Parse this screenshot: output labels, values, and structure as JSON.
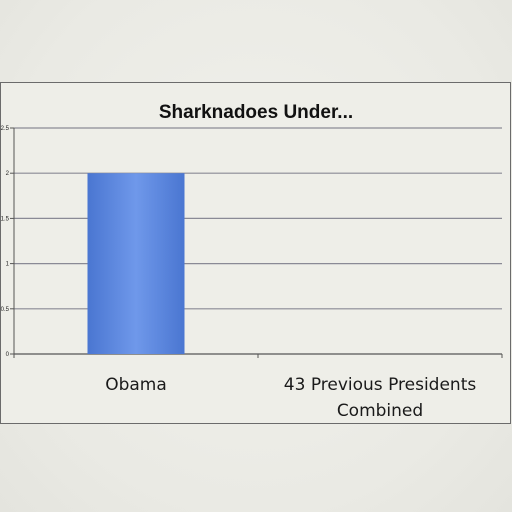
{
  "chart_data": {
    "type": "bar",
    "title": "Sharknadoes Under...",
    "categories": [
      "Obama",
      "43 Previous Presidents Combined"
    ],
    "category_lines": [
      [
        "Obama"
      ],
      [
        "43 Previous Presidents",
        "Combined"
      ]
    ],
    "values": [
      2,
      0
    ],
    "ylim": [
      0,
      2.5
    ],
    "yticks": [
      0,
      0.5,
      1,
      1.5,
      2,
      2.5
    ],
    "grid": true,
    "legend": "none",
    "bar_color": "#4a76d1",
    "bar_color_light": "#6f98ea",
    "grid_color": "#8a8a95"
  }
}
